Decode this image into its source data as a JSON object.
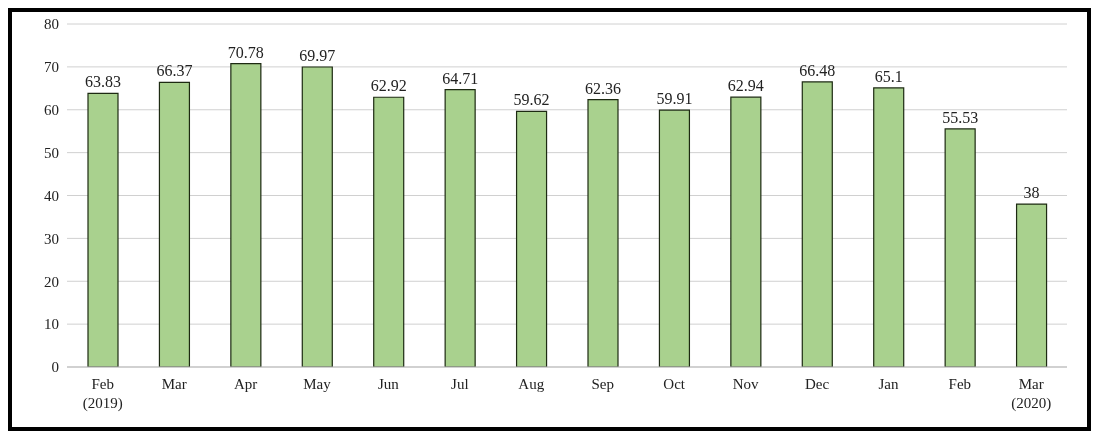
{
  "chart_data": {
    "type": "bar",
    "categories": [
      "Feb\n(2019)",
      "Mar",
      "Apr",
      "May",
      "Jun",
      "Jul",
      "Aug",
      "Sep",
      "Oct",
      "Nov",
      "Dec",
      "Jan",
      "Feb",
      "Mar\n(2020)"
    ],
    "values": [
      63.83,
      66.37,
      70.78,
      69.97,
      62.92,
      64.71,
      59.62,
      62.36,
      59.91,
      62.94,
      66.48,
      65.1,
      55.53,
      38
    ],
    "color": "#a9d18e",
    "ylim": [
      0,
      80
    ],
    "yticks": [
      0,
      10,
      20,
      30,
      40,
      50,
      60,
      70,
      80
    ],
    "grid": "y",
    "data_labels": true
  }
}
